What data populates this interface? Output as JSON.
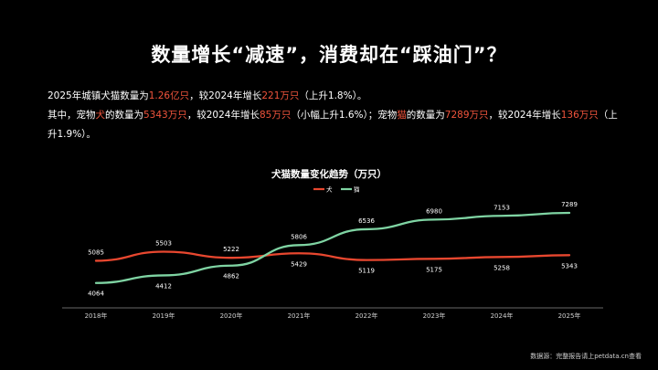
{
  "title": "数量增长“减速”，消费却在“踩油门”？",
  "paragraph1": {
    "t1": "2025年城镇犬猫数量为",
    "v1": "1.26亿只",
    "t2": "，较2024年增长",
    "v2": "221万只",
    "t3": "（上升1.8%）。"
  },
  "paragraph2": {
    "t1": "其中，宠物",
    "v1": "犬",
    "t2": "的数量为",
    "v2": "5343万只",
    "t3": "，较2024年增长",
    "v3": "85万只",
    "t4": "（小幅上升1.6%）；宠物",
    "v4": "猫",
    "t5": "的数量为",
    "v5": "7289万只",
    "t6": "，较2024年增长",
    "v6": "136万只",
    "t7": "（上升1.9%）。"
  },
  "chart_data": {
    "type": "line",
    "title": "犬猫数量变化趋势（万只）",
    "categories": [
      "2018年",
      "2019年",
      "2020年",
      "2021年",
      "2022年",
      "2023年",
      "2024年",
      "2025年"
    ],
    "series": [
      {
        "name": "犬",
        "color": "#e8472f",
        "values": [
          5085,
          5503,
          5222,
          5429,
          5119,
          5175,
          5258,
          5343
        ]
      },
      {
        "name": "猫",
        "color": "#7fd4a3",
        "values": [
          4064,
          4412,
          4862,
          5806,
          6536,
          6980,
          7153,
          7289
        ]
      }
    ],
    "legend": "top-center",
    "grid": false
  },
  "source": "数据源：完整报告请上petdata.cn查看"
}
